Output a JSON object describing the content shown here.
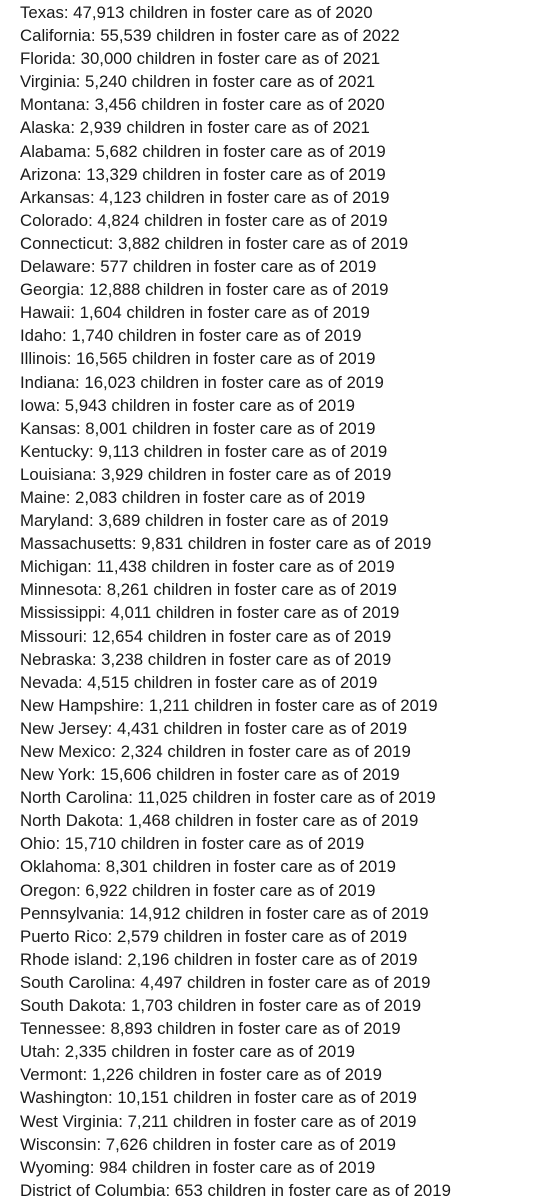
{
  "lines": [
    "Texas: 47,913 children in foster care as of 2020",
    "California: 55,539 children in foster care as of 2022",
    "Florida: 30,000 children in foster care as of 2021",
    "Virginia: 5,240 children in foster care as of 2021",
    "Montana: 3,456 children in foster care as of 2020",
    "Alaska: 2,939 children in foster care as of 2021",
    "Alabama: 5,682 children in foster care as of 2019",
    "Arizona: 13,329 children in foster care as of 2019",
    "Arkansas: 4,123 children in foster care as of 2019",
    "Colorado: 4,824 children in foster care as of 2019",
    "Connecticut: 3,882 children in foster care as of 2019",
    "Delaware: 577 children in foster care as of 2019",
    "Georgia: 12,888 children in foster care as of 2019",
    "Hawaii: 1,604 children in foster care as of 2019",
    "Idaho: 1,740 children in foster care as of 2019",
    "Illinois: 16,565 children in foster care as of 2019",
    "Indiana: 16,023 children in foster care as of 2019",
    "Iowa: 5,943 children in foster care as of 2019",
    "Kansas: 8,001 children in foster care as of 2019",
    "Kentucky: 9,113 children in foster care as of 2019",
    "Louisiana: 3,929 children in foster care as of 2019",
    "Maine: 2,083 children in foster care as of 2019",
    "Maryland: 3,689 children in foster care as of 2019",
    "Massachusetts: 9,831 children in foster care as of 2019",
    "Michigan: 11,438 children in foster care as of 2019",
    "Minnesota: 8,261 children in foster care as of 2019",
    "Mississippi: 4,011 children in foster care as of 2019",
    "Missouri: 12,654 children in foster care as of 2019",
    "Nebraska: 3,238 children in foster care as of 2019",
    "Nevada: 4,515 children in foster care as of 2019",
    "New Hampshire: 1,211 children in foster care as of 2019",
    "New Jersey: 4,431 children in foster care as of 2019",
    "New Mexico: 2,324 children in foster care as of 2019",
    "New York: 15,606 children in foster care as of 2019",
    "North Carolina: 11,025 children in foster care as of 2019",
    "North Dakota: 1,468 children in foster care as of 2019",
    "Ohio: 15,710 children in foster care as of 2019",
    "Oklahoma: 8,301 children in foster care as of 2019",
    "Oregon: 6,922 children in foster care as of 2019",
    "Pennsylvania: 14,912 children in foster care as of 2019",
    "Puerto Rico: 2,579 children in foster care as of 2019",
    "Rhode island: 2,196 children in foster care as of 2019",
    "South Carolina: 4,497 children in foster care as of 2019",
    "South Dakota: 1,703 children in foster care as of 2019",
    "Tennessee: 8,893 children in foster care as of 2019",
    "Utah: 2,335 children in foster care as of 2019",
    "Vermont: 1,226 children in foster care as of 2019",
    "Washington: 10,151 children in foster care as of 2019",
    "West Virginia: 7,211 children in foster care as of 2019",
    "Wisconsin: 7,626 children in foster care as of 2019",
    "Wyoming: 984 children in foster care as of 2019",
    "District of Columbia: 653 children in foster care as of 2019"
  ]
}
